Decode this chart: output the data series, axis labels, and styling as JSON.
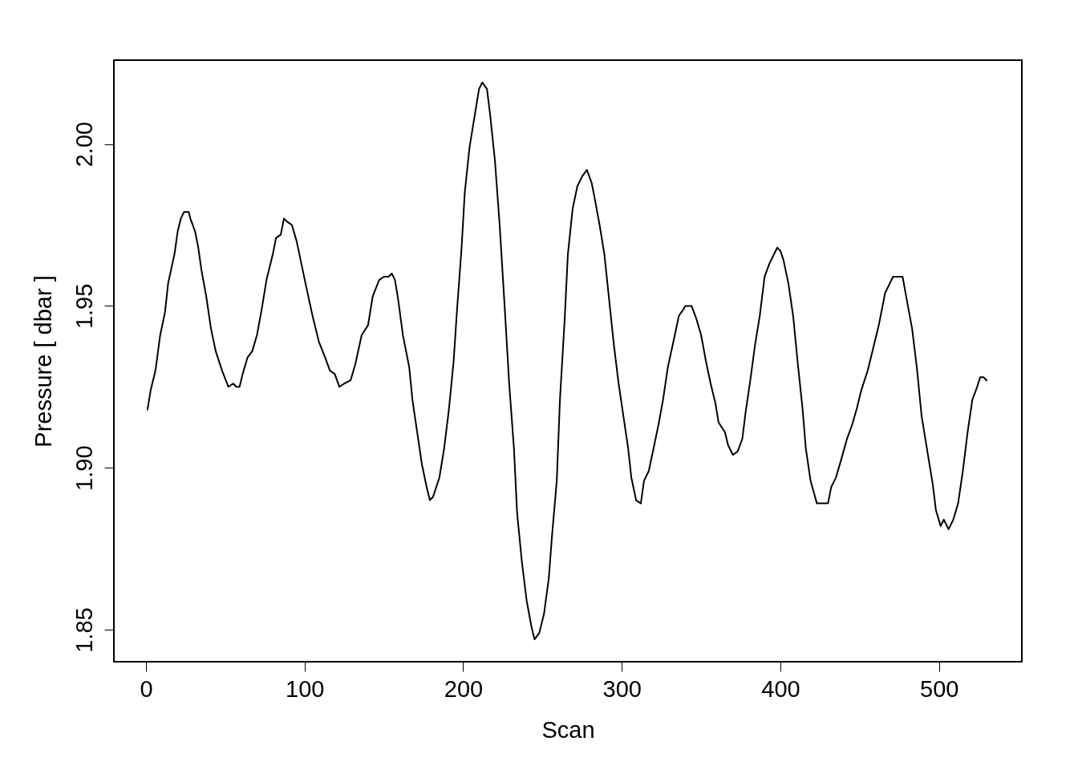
{
  "chart_data": {
    "type": "line",
    "xlabel": "Scan",
    "ylabel": "Pressure [ dbar ]",
    "x": [
      1,
      3,
      6,
      9,
      12,
      14,
      18,
      20,
      22,
      24,
      27,
      28,
      31,
      33,
      35,
      38,
      41,
      44,
      48,
      52,
      55,
      57,
      59,
      61,
      64,
      67,
      70,
      73,
      76,
      80,
      82,
      85,
      87,
      89,
      92,
      95,
      98,
      101,
      105,
      109,
      113,
      116,
      119,
      122,
      125,
      129,
      132,
      136,
      140,
      143,
      147,
      150,
      153,
      155,
      157,
      159,
      162,
      166,
      168,
      171,
      174,
      177,
      179,
      181,
      185,
      188,
      191,
      194,
      196,
      199,
      201,
      204,
      207,
      210,
      212,
      215,
      217,
      220,
      223,
      226,
      229,
      232,
      234,
      237,
      240,
      243,
      245,
      248,
      251,
      254,
      256,
      259,
      261,
      264,
      266,
      269,
      272,
      275,
      278,
      281,
      283,
      286,
      289,
      292,
      295,
      298,
      301,
      304,
      306,
      309,
      312,
      314,
      317,
      320,
      323,
      326,
      329,
      333,
      336,
      339,
      340,
      342,
      344,
      347,
      350,
      353,
      356,
      359,
      361,
      365,
      367,
      370,
      373,
      376,
      378,
      381,
      384,
      387,
      390,
      393,
      396,
      398,
      400,
      402,
      405,
      408,
      411,
      414,
      416,
      419,
      423,
      427,
      430,
      432,
      435,
      438,
      442,
      445,
      448,
      451,
      455,
      458,
      462,
      466,
      469,
      471,
      474,
      477,
      480,
      483,
      486,
      489,
      493,
      496,
      498,
      501,
      503,
      506,
      509,
      512,
      515,
      518,
      521,
      524,
      526,
      528,
      530
    ],
    "series": [
      {
        "color": "#000000",
        "values": [
          1.918,
          1.924,
          1.93,
          1.941,
          1.948,
          1.957,
          1.966,
          1.973,
          1.977,
          1.979,
          1.979,
          1.977,
          1.973,
          1.968,
          1.961,
          1.953,
          1.943,
          1.936,
          1.93,
          1.925,
          1.926,
          1.925,
          1.925,
          1.929,
          1.934,
          1.936,
          1.941,
          1.949,
          1.958,
          1.966,
          1.971,
          1.972,
          1.977,
          1.976,
          1.975,
          1.97,
          1.963,
          1.956,
          1.947,
          1.939,
          1.934,
          1.93,
          1.929,
          1.925,
          1.926,
          1.927,
          1.932,
          1.941,
          1.944,
          1.953,
          1.958,
          1.959,
          1.959,
          1.96,
          1.958,
          1.952,
          1.941,
          1.931,
          1.921,
          1.911,
          1.901,
          1.894,
          1.89,
          1.891,
          1.897,
          1.906,
          1.918,
          1.933,
          1.948,
          1.968,
          1.985,
          1.999,
          2.008,
          2.017,
          2.019,
          2.017,
          2.009,
          1.995,
          1.975,
          1.951,
          1.926,
          1.906,
          1.886,
          1.871,
          1.859,
          1.851,
          1.847,
          1.849,
          1.855,
          1.866,
          1.879,
          1.896,
          1.921,
          1.946,
          1.966,
          1.98,
          1.987,
          1.99,
          1.992,
          1.988,
          1.983,
          1.975,
          1.966,
          1.952,
          1.938,
          1.926,
          1.916,
          1.906,
          1.897,
          1.89,
          1.889,
          1.896,
          1.899,
          1.906,
          1.913,
          1.921,
          1.931,
          1.94,
          1.947,
          1.949,
          1.95,
          1.95,
          1.95,
          1.946,
          1.941,
          1.933,
          1.926,
          1.92,
          1.914,
          1.911,
          1.907,
          1.904,
          1.905,
          1.909,
          1.917,
          1.927,
          1.938,
          1.947,
          1.959,
          1.963,
          1.966,
          1.968,
          1.967,
          1.964,
          1.957,
          1.947,
          1.932,
          1.918,
          1.906,
          1.896,
          1.889,
          1.889,
          1.889,
          1.894,
          1.897,
          1.902,
          1.909,
          1.913,
          1.918,
          1.924,
          1.93,
          1.936,
          1.944,
          1.954,
          1.957,
          1.959,
          1.959,
          1.959,
          1.951,
          1.943,
          1.931,
          1.916,
          1.904,
          1.895,
          1.887,
          1.882,
          1.884,
          1.881,
          1.884,
          1.889,
          1.899,
          1.911,
          1.921,
          1.925,
          1.928,
          1.928,
          1.927
        ]
      }
    ],
    "xlim": [
      -20.2,
      552.2
    ],
    "xticks": [
      0,
      100,
      200,
      300,
      400,
      500
    ],
    "ylim": [
      1.8401,
      2.0259
    ],
    "yticks": [
      {
        "value": 1.85,
        "label": "1.85"
      },
      {
        "value": 1.9,
        "label": "1.90"
      },
      {
        "value": 1.95,
        "label": "1.95"
      },
      {
        "value": 2.0,
        "label": "2.00"
      }
    ],
    "grid": false,
    "marker": "none",
    "line_style": "solid"
  }
}
